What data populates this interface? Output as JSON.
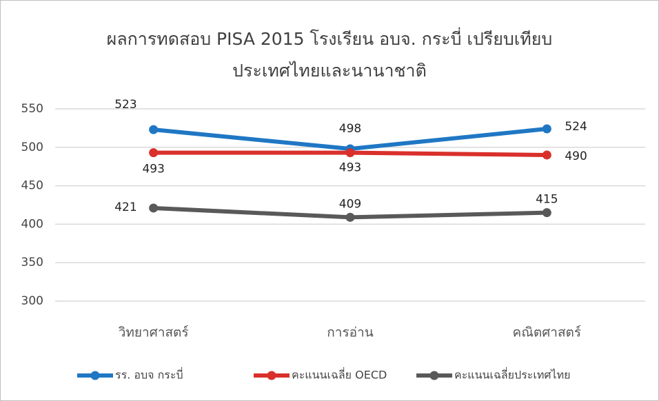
{
  "chart_data": {
    "type": "line",
    "title": "ผลการทดสอบ PISA 2015 โรงเรียน อบจ. กระบี่ เปรียบเทียบประเทศไทยและนานาชาติ",
    "categories": [
      "วิทยาศาสตร์",
      "การอ่าน",
      "คณิตศาสตร์"
    ],
    "series": [
      {
        "name": "รร. อบจ กระบี่",
        "color": "#1f77c4",
        "values": [
          523,
          498,
          524
        ]
      },
      {
        "name": "คะแนนเฉลี่ย OECD",
        "color": "#d9302c",
        "values": [
          493,
          493,
          490
        ]
      },
      {
        "name": "คะแนนเฉลี่ยประเทศไทย",
        "color": "#595959",
        "values": [
          421,
          409,
          415
        ]
      }
    ],
    "ylim": [
      300,
      550
    ],
    "yticks": [
      300,
      350,
      400,
      450,
      500,
      550
    ],
    "grid": true,
    "legend": "bottom"
  }
}
